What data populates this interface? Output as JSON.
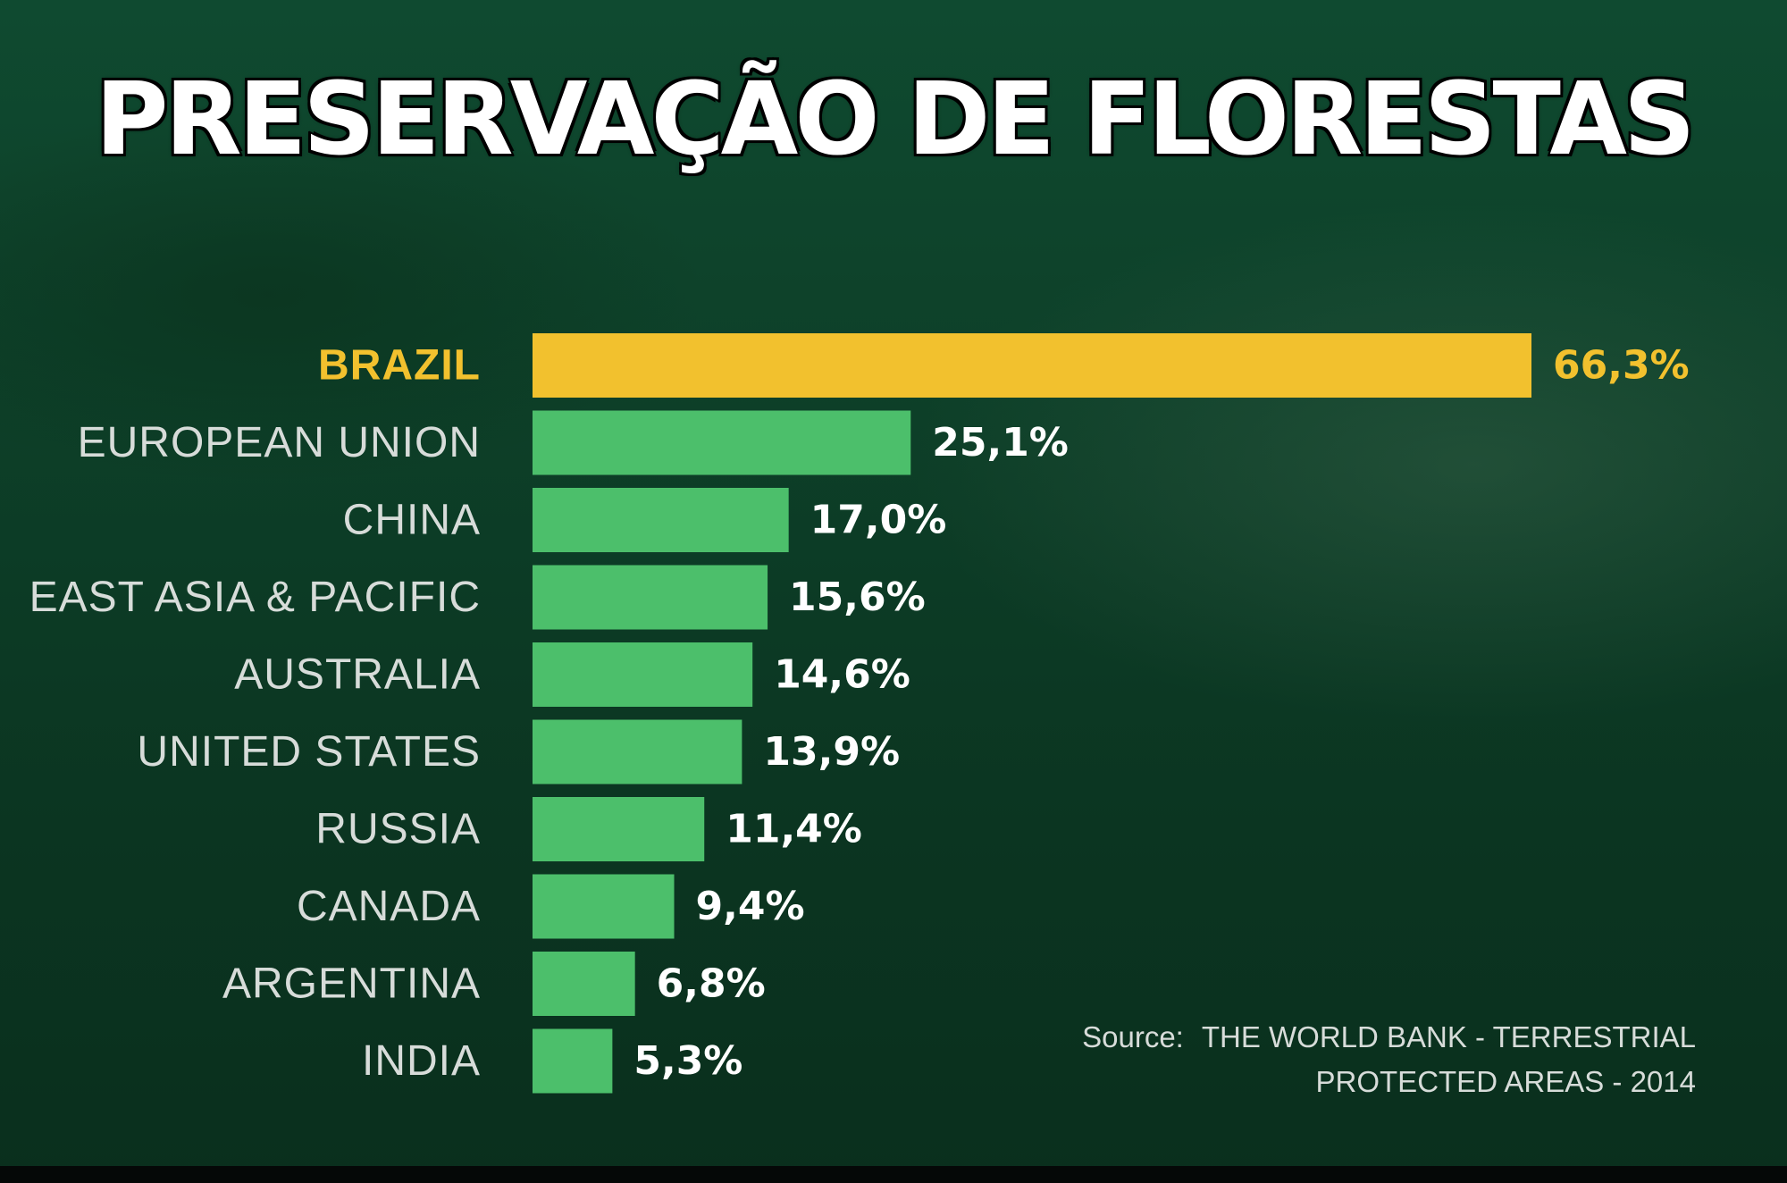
{
  "title": "PRESERVAÇÃO DE FLORESTAS",
  "source": {
    "label": "Source:",
    "line1": "THE WORLD BANK - TERRESTRIAL",
    "line2": "PROTECTED AREAS - 2014"
  },
  "colors": {
    "highlight": "#f2c12e",
    "bar": "#4cbf6b",
    "background": "#0d3f28"
  },
  "chart_data": {
    "type": "bar",
    "orientation": "horizontal",
    "title": "",
    "xlabel": "",
    "ylabel": "",
    "categories": [
      "BRAZIL",
      "EUROPEAN UNION",
      "CHINA",
      "EAST ASIA & PACIFIC",
      "AUSTRALIA",
      "UNITED STATES",
      "RUSSIA",
      "CANADA",
      "ARGENTINA",
      "INDIA"
    ],
    "values": [
      66.3,
      25.1,
      17.0,
      15.6,
      14.6,
      13.9,
      11.4,
      9.4,
      6.8,
      5.3
    ],
    "value_labels": [
      "66,3%",
      "25,1%",
      "17,0%",
      "15,6%",
      "14,6%",
      "13,9%",
      "11,4%",
      "9,4%",
      "6,8%",
      "5,3%"
    ],
    "highlight_index": 0,
    "xlim": [
      0,
      66.3
    ],
    "grid": false,
    "legend": "none"
  }
}
